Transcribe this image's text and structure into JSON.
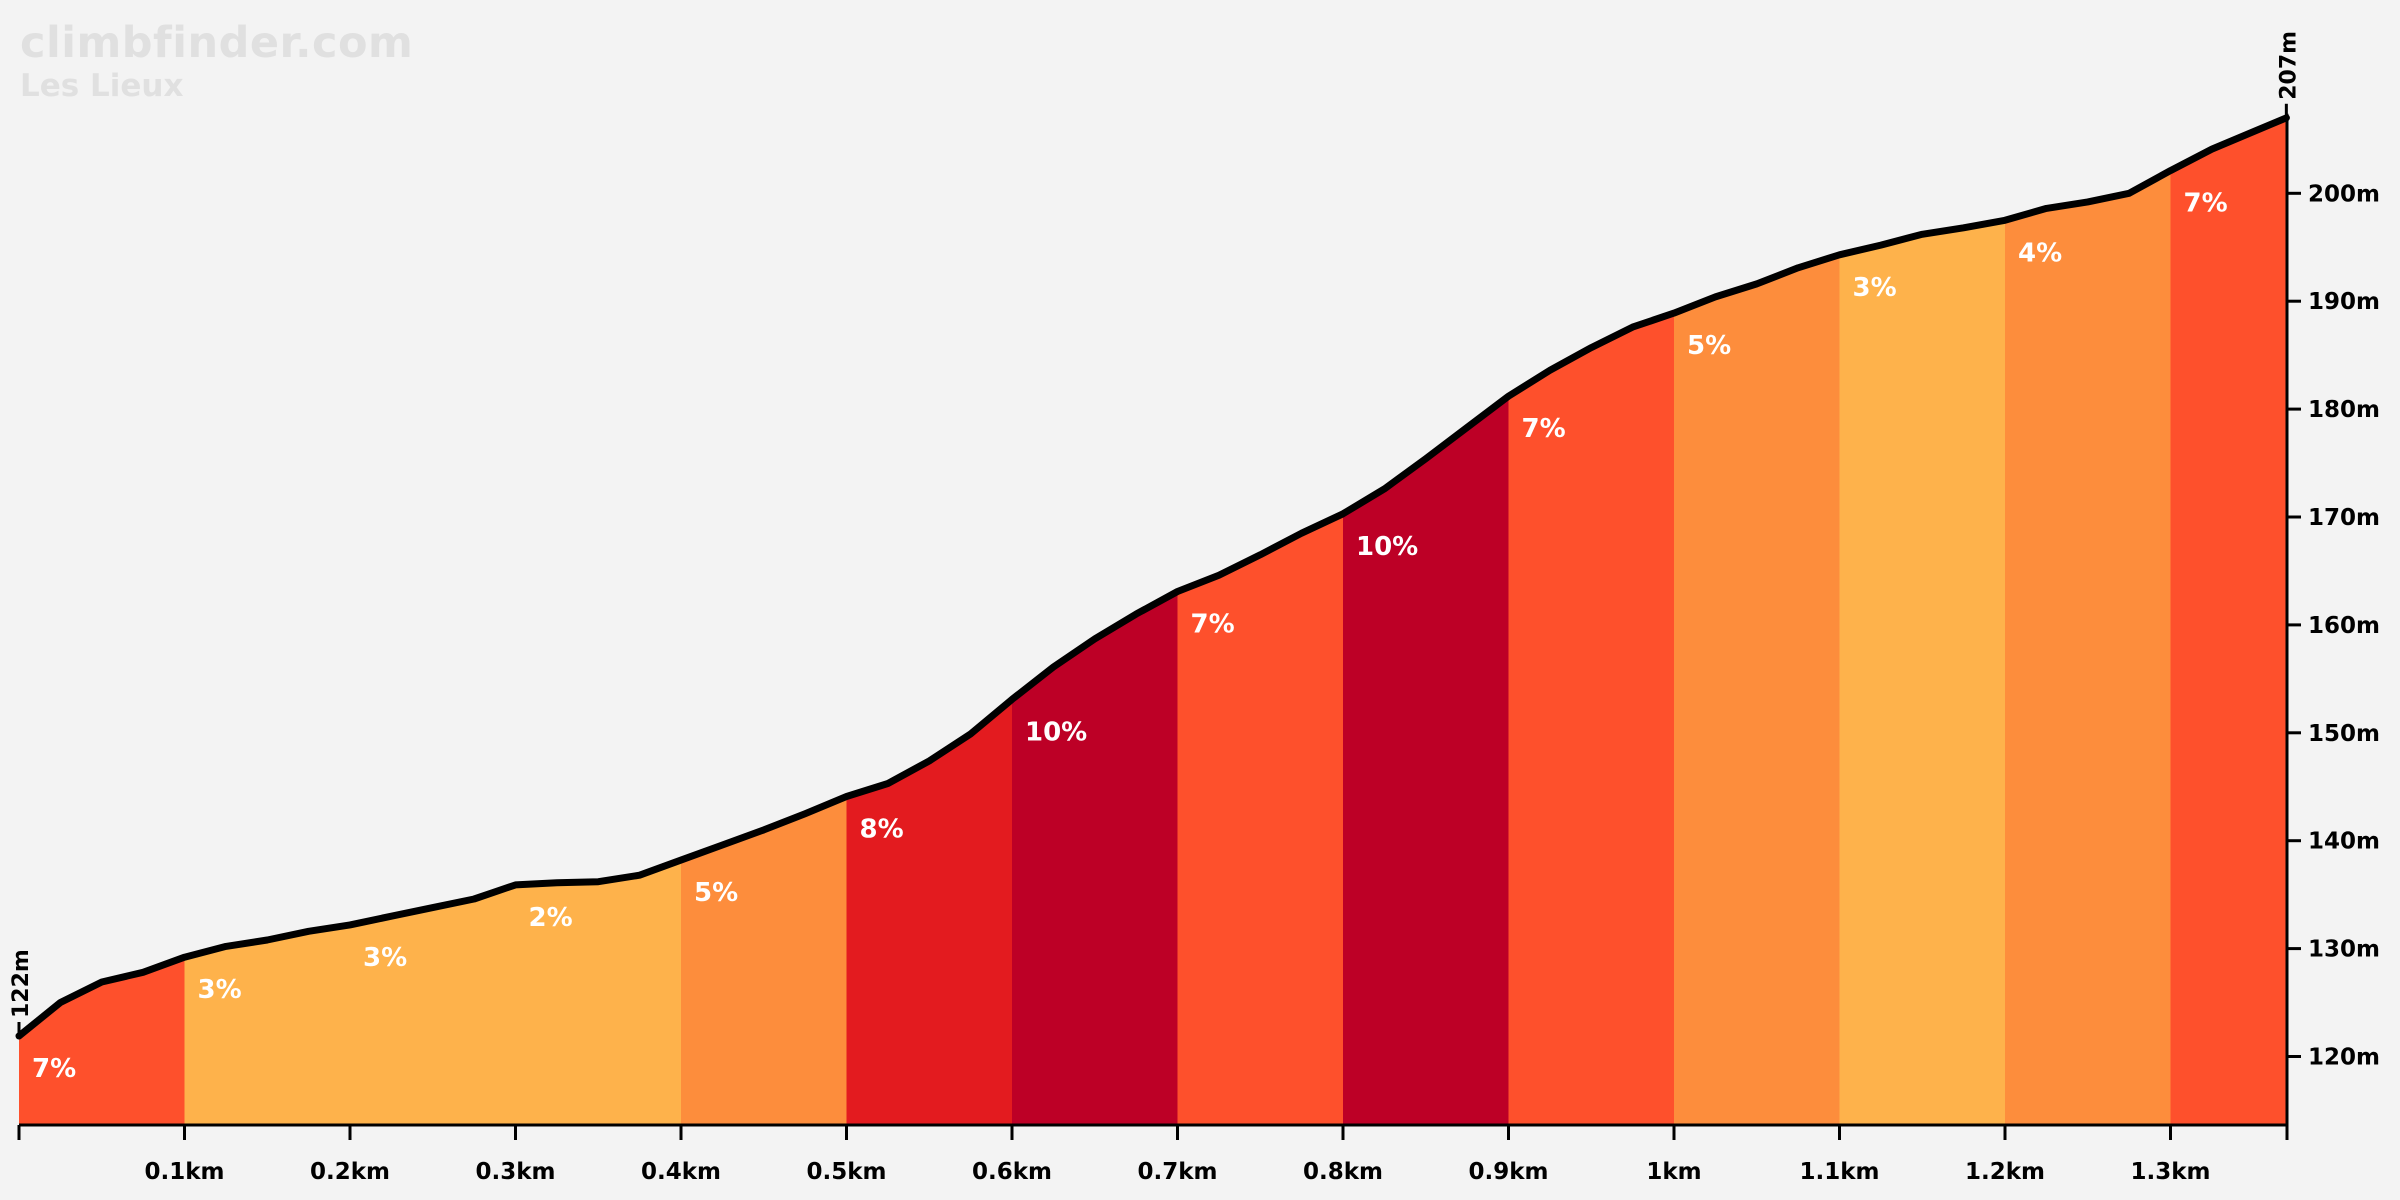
{
  "header": {
    "brand": "climbfinder.com",
    "climb_name": "Les Lieux"
  },
  "chart_data": {
    "type": "area",
    "title": "Les Lieux",
    "xlabel": "",
    "ylabel": "",
    "x_unit": "km",
    "y_unit": "m",
    "xlim": [
      0,
      1.37
    ],
    "ylim": [
      113,
      207
    ],
    "start_label": "122m",
    "end_label": "207m",
    "x_ticks": [
      {
        "value": 0.1,
        "label": "0.1km"
      },
      {
        "value": 0.2,
        "label": "0.2km"
      },
      {
        "value": 0.3,
        "label": "0.3km"
      },
      {
        "value": 0.4,
        "label": "0.4km"
      },
      {
        "value": 0.5,
        "label": "0.5km"
      },
      {
        "value": 0.6,
        "label": "0.6km"
      },
      {
        "value": 0.7,
        "label": "0.7km"
      },
      {
        "value": 0.8,
        "label": "0.8km"
      },
      {
        "value": 0.9,
        "label": "0.9km"
      },
      {
        "value": 1.0,
        "label": "1km"
      },
      {
        "value": 1.1,
        "label": "1.1km"
      },
      {
        "value": 1.2,
        "label": "1.2km"
      },
      {
        "value": 1.3,
        "label": "1.3km"
      }
    ],
    "y_ticks": [
      {
        "value": 120,
        "label": "120m"
      },
      {
        "value": 130,
        "label": "130m"
      },
      {
        "value": 140,
        "label": "140m"
      },
      {
        "value": 150,
        "label": "150m"
      },
      {
        "value": 160,
        "label": "160m"
      },
      {
        "value": 170,
        "label": "170m"
      },
      {
        "value": 180,
        "label": "180m"
      },
      {
        "value": 190,
        "label": "190m"
      },
      {
        "value": 200,
        "label": "200m"
      }
    ],
    "profile": [
      [
        0,
        121.9
      ],
      [
        0.025,
        125
      ],
      [
        0.05,
        126.9
      ],
      [
        0.075,
        127.8
      ],
      [
        0.1,
        129.2
      ],
      [
        0.125,
        130.2
      ],
      [
        0.15,
        130.8
      ],
      [
        0.175,
        131.6
      ],
      [
        0.2,
        132.2
      ],
      [
        0.225,
        133
      ],
      [
        0.25,
        133.8
      ],
      [
        0.275,
        134.6
      ],
      [
        0.3,
        135.9
      ],
      [
        0.325,
        136.1
      ],
      [
        0.35,
        136.2
      ],
      [
        0.375,
        136.8
      ],
      [
        0.4,
        138.2
      ],
      [
        0.425,
        139.6
      ],
      [
        0.45,
        141
      ],
      [
        0.475,
        142.5
      ],
      [
        0.5,
        144.1
      ],
      [
        0.525,
        145.3
      ],
      [
        0.55,
        147.4
      ],
      [
        0.575,
        149.9
      ],
      [
        0.6,
        153.1
      ],
      [
        0.625,
        156.1
      ],
      [
        0.65,
        158.7
      ],
      [
        0.675,
        161
      ],
      [
        0.7,
        163.1
      ],
      [
        0.725,
        164.6
      ],
      [
        0.75,
        166.5
      ],
      [
        0.775,
        168.5
      ],
      [
        0.8,
        170.3
      ],
      [
        0.825,
        172.6
      ],
      [
        0.85,
        175.4
      ],
      [
        0.875,
        178.3
      ],
      [
        0.9,
        181.2
      ],
      [
        0.925,
        183.6
      ],
      [
        0.95,
        185.7
      ],
      [
        0.975,
        187.6
      ],
      [
        1.0,
        188.9
      ],
      [
        1.025,
        190.4
      ],
      [
        1.05,
        191.6
      ],
      [
        1.075,
        193.1
      ],
      [
        1.1,
        194.3
      ],
      [
        1.125,
        195.2
      ],
      [
        1.15,
        196.2
      ],
      [
        1.175,
        196.8
      ],
      [
        1.2,
        197.5
      ],
      [
        1.225,
        198.6
      ],
      [
        1.25,
        199.2
      ],
      [
        1.275,
        200
      ],
      [
        1.3,
        202.1
      ],
      [
        1.325,
        204.1
      ],
      [
        1.37,
        207
      ]
    ],
    "segments": [
      {
        "start": 0,
        "end": 0.1,
        "gradient": "7%",
        "color": "#fe502c"
      },
      {
        "start": 0.1,
        "end": 0.2,
        "gradient": "3%",
        "color": "#feb24b"
      },
      {
        "start": 0.2,
        "end": 0.3,
        "gradient": "3%",
        "color": "#feb24b"
      },
      {
        "start": 0.3,
        "end": 0.4,
        "gradient": "2%",
        "color": "#feb24b"
      },
      {
        "start": 0.4,
        "end": 0.5,
        "gradient": "5%",
        "color": "#fd8d3c"
      },
      {
        "start": 0.5,
        "end": 0.6,
        "gradient": "8%",
        "color": "#e31b1f"
      },
      {
        "start": 0.6,
        "end": 0.7,
        "gradient": "10%",
        "color": "#bd0026"
      },
      {
        "start": 0.7,
        "end": 0.8,
        "gradient": "7%",
        "color": "#fe502c"
      },
      {
        "start": 0.8,
        "end": 0.9,
        "gradient": "10%",
        "color": "#bd0026"
      },
      {
        "start": 0.9,
        "end": 1.0,
        "gradient": "7%",
        "color": "#fe502c"
      },
      {
        "start": 1.0,
        "end": 1.1,
        "gradient": "5%",
        "color": "#fd8d3c"
      },
      {
        "start": 1.1,
        "end": 1.2,
        "gradient": "3%",
        "color": "#feb24b"
      },
      {
        "start": 1.2,
        "end": 1.3,
        "gradient": "4%",
        "color": "#fd8d3c"
      },
      {
        "start": 1.3,
        "end": 1.37,
        "gradient": "7%",
        "color": "#fe502c"
      }
    ],
    "colors": {
      "background": "#f3f3f3",
      "profile_line": "#000000",
      "label_text": "#ffffff"
    }
  }
}
